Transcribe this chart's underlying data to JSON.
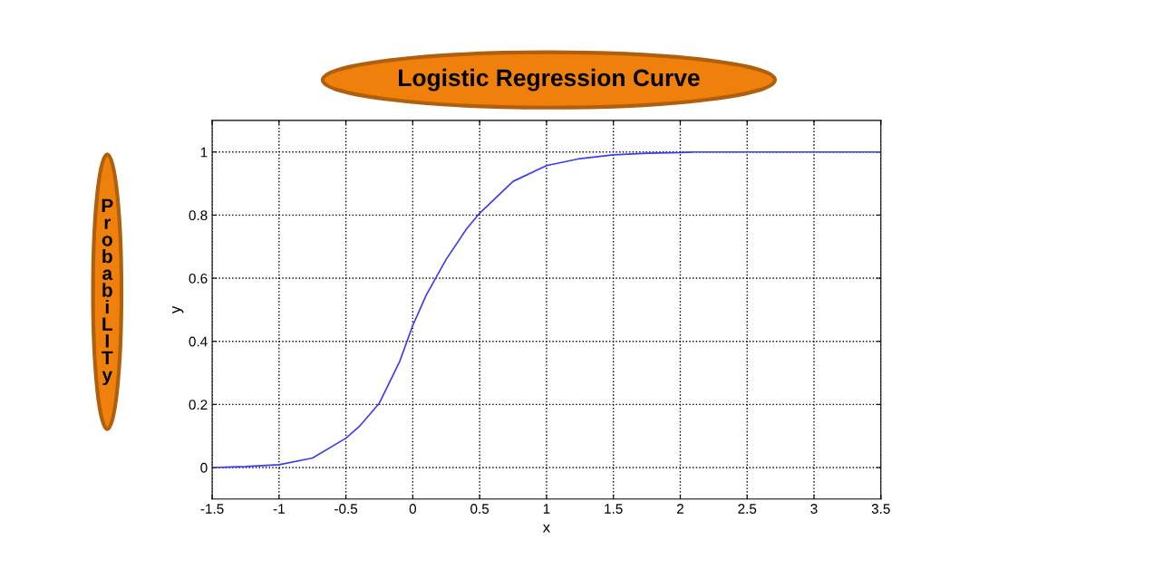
{
  "chart_data": {
    "type": "line",
    "title": "Logistic Regression Curve",
    "xlabel": "x",
    "ylabel": "y",
    "annotations": [
      "ProbabiLITy"
    ],
    "xlim": [
      -1.5,
      3.5
    ],
    "ylim": [
      -0.1,
      1.1
    ],
    "xticks": [
      -1.5,
      -1,
      -0.5,
      0,
      0.5,
      1,
      1.5,
      2,
      2.5,
      3,
      3.5
    ],
    "yticks": [
      0,
      0.2,
      0.4,
      0.6,
      0.8,
      1
    ],
    "grid": true,
    "legend": false,
    "marker": "none",
    "line_style": "solid",
    "series": [
      {
        "color": "#3c3cf0",
        "x": [
          -1.5,
          -1.25,
          -1,
          -0.75,
          -0.5,
          -0.4,
          -0.25,
          -0.1,
          0,
          0.1,
          0.25,
          0.4,
          0.5,
          0.75,
          1,
          1.25,
          1.5,
          1.75,
          2,
          2.1,
          2.5,
          3,
          3.5
        ],
        "values": [
          0,
          0.003,
          0.009,
          0.03,
          0.093,
          0.13,
          0.204,
          0.334,
          0.45,
          0.546,
          0.66,
          0.755,
          0.806,
          0.907,
          0.957,
          0.979,
          0.991,
          0.996,
          0.998,
          1,
          1,
          1,
          1
        ]
      }
    ]
  }
}
